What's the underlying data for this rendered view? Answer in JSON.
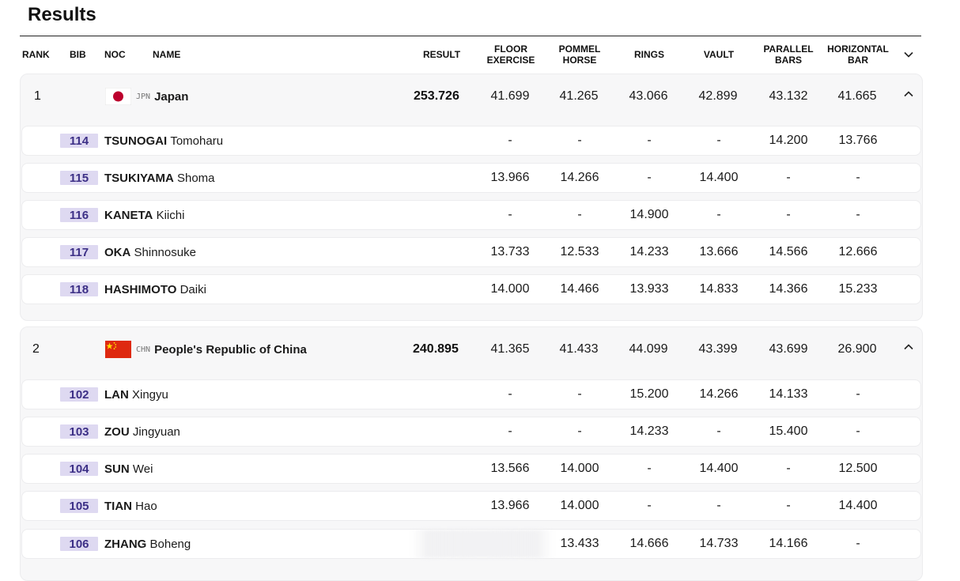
{
  "title": "Results",
  "columns": {
    "rank": "RANK",
    "bib": "BIB",
    "noc": "NOC",
    "name": "NAME",
    "result": "RESULT",
    "floor_1": "FLOOR",
    "floor_2": "EXERCISE",
    "pommel_1": "POMMEL",
    "pommel_2": "HORSE",
    "rings": "RINGS",
    "vault": "VAULT",
    "parallel_1": "PARALLEL",
    "parallel_2": "BARS",
    "horizontal_1": "HORIZONTAL",
    "horizontal_2": "BAR"
  },
  "teams": [
    {
      "rank": "1",
      "noc_code": "JPN",
      "country": "Japan",
      "flag": "japan-flag",
      "result": "253.726",
      "scores": [
        "41.699",
        "41.265",
        "43.066",
        "42.899",
        "43.132",
        "41.665"
      ],
      "athletes": [
        {
          "bib": "114",
          "last": "TSUNOGAI",
          "first": "Tomoharu",
          "scores": [
            "-",
            "-",
            "-",
            "-",
            "14.200",
            "13.766"
          ]
        },
        {
          "bib": "115",
          "last": "TSUKIYAMA",
          "first": "Shoma",
          "scores": [
            "13.966",
            "14.266",
            "-",
            "14.400",
            "-",
            "-"
          ]
        },
        {
          "bib": "116",
          "last": "KANETA",
          "first": "Kiichi",
          "scores": [
            "-",
            "-",
            "14.900",
            "-",
            "-",
            "-"
          ]
        },
        {
          "bib": "117",
          "last": "OKA",
          "first": "Shinnosuke",
          "scores": [
            "13.733",
            "12.533",
            "14.233",
            "13.666",
            "14.566",
            "12.666"
          ]
        },
        {
          "bib": "118",
          "last": "HASHIMOTO",
          "first": "Daiki",
          "scores": [
            "14.000",
            "14.466",
            "13.933",
            "14.833",
            "14.366",
            "15.233"
          ]
        }
      ]
    },
    {
      "rank": "2",
      "noc_code": "CHN",
      "country": "People's Republic of China",
      "flag": "china-flag",
      "result": "240.895",
      "scores": [
        "41.365",
        "41.433",
        "44.099",
        "43.399",
        "43.699",
        "26.900"
      ],
      "athletes": [
        {
          "bib": "102",
          "last": "LAN",
          "first": "Xingyu",
          "scores": [
            "-",
            "-",
            "15.200",
            "14.266",
            "14.133",
            "-"
          ]
        },
        {
          "bib": "103",
          "last": "ZOU",
          "first": "Jingyuan",
          "scores": [
            "-",
            "-",
            "14.233",
            "-",
            "15.400",
            "-"
          ]
        },
        {
          "bib": "104",
          "last": "SUN",
          "first": "Wei",
          "scores": [
            "13.566",
            "14.000",
            "-",
            "14.400",
            "-",
            "12.500"
          ]
        },
        {
          "bib": "105",
          "last": "TIAN",
          "first": "Hao",
          "scores": [
            "13.966",
            "14.000",
            "-",
            "-",
            "-",
            "14.400"
          ]
        },
        {
          "bib": "106",
          "last": "ZHANG",
          "first": "Boheng",
          "scores": [
            "",
            "13.433",
            "14.666",
            "14.733",
            "14.166",
            "-"
          ]
        }
      ]
    }
  ],
  "colors": {
    "bib_bg": "#ded9f1",
    "bib_text": "#3c2f86",
    "card_bg": "#f7f7f8",
    "japan_red": "#bc002d",
    "china_red": "#de2910",
    "china_yellow": "#ffde00"
  }
}
